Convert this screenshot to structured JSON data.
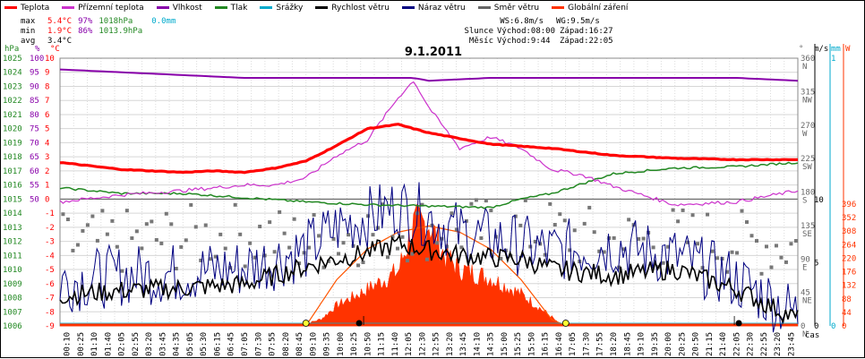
{
  "legend": [
    {
      "label": "Teplota",
      "color": "#ff0000"
    },
    {
      "label": "Přízemní teplota",
      "color": "#cc33cc"
    },
    {
      "label": "Vlhkost",
      "color": "#8800aa"
    },
    {
      "label": "Tlak",
      "color": "#228822"
    },
    {
      "label": "Srážky",
      "color": "#00aacc"
    },
    {
      "label": "Rychlost větru",
      "color": "#000000"
    },
    {
      "label": "Náraz větru",
      "color": "#000080"
    },
    {
      "label": "Směr větru",
      "color": "#666666"
    },
    {
      "label": "Globální záření",
      "color": "#ff3300"
    }
  ],
  "stats": {
    "max_label": "max",
    "min_label": "min",
    "avg_label": "avg",
    "max_temp": "5.4°C",
    "max_hum": "97%",
    "max_press": "1018hPa",
    "max_rain": "0.0mm",
    "min_temp": "1.9°C",
    "min_hum": "86%",
    "min_press": "1013.9hPa",
    "avg_temp": "3.4°C"
  },
  "astro": {
    "ws": "WS:6.8m/s",
    "wg": "WG:9.5m/s",
    "sun_label": "Slunce",
    "sun_rise": "Východ:08:00",
    "sun_set": "Západ:16:27",
    "moon_label": "Měsíc",
    "moon_rise": "Východ:9:44",
    "moon_set": "Západ:22:05"
  },
  "chart_data": {
    "type": "line",
    "title": "9.1.2011",
    "xlabel": "čas",
    "x_ticks": [
      "00:10",
      "00:25",
      "01:10",
      "01:40",
      "02:05",
      "02:55",
      "03:20",
      "03:45",
      "04:35",
      "05:05",
      "05:30",
      "06:15",
      "06:45",
      "07:05",
      "07:30",
      "07:55",
      "08:20",
      "08:45",
      "09:10",
      "09:35",
      "10:00",
      "10:25",
      "10:50",
      "11:15",
      "11:40",
      "12:05",
      "12:30",
      "12:55",
      "13:20",
      "13:45",
      "14:10",
      "14:35",
      "15:00",
      "15:25",
      "15:50",
      "16:15",
      "16:40",
      "17:05",
      "17:30",
      "17:55",
      "18:20",
      "18:45",
      "19:10",
      "19:35",
      "20:00",
      "20:25",
      "20:50",
      "21:15",
      "21:40",
      "22:05",
      "22:30",
      "22:55",
      "23:20",
      "23:45"
    ],
    "axes": {
      "pressure": {
        "label": "hPa",
        "color": "#228822",
        "ticks": [
          "1006",
          "1007",
          "1008",
          "1009",
          "1010",
          "1011",
          "1012",
          "1013",
          "1014",
          "1015",
          "1016",
          "1017",
          "1018",
          "1019",
          "1020",
          "1021",
          "1022",
          "1023",
          "1024",
          "1025"
        ]
      },
      "humidity": {
        "label": "%",
        "color": "#8800aa",
        "ticks": [
          "50",
          "55",
          "60",
          "65",
          "70",
          "75",
          "80",
          "85",
          "90",
          "95",
          "100"
        ]
      },
      "temperature": {
        "label": "°C",
        "color": "#ff0000",
        "ticks": [
          "-9",
          "-8",
          "-7",
          "-6",
          "-5",
          "-4",
          "-3",
          "-2",
          "-1",
          "0",
          "1",
          "2",
          "3",
          "4",
          "5",
          "6",
          "7",
          "8",
          "9",
          "10"
        ]
      },
      "direction": {
        "label": "°",
        "color": "#666666",
        "ticks": [
          "0",
          "45",
          "90",
          "135",
          "180",
          "225",
          "270",
          "315",
          "360"
        ],
        "compass": [
          "N",
          "NE",
          "E",
          "SE",
          "S",
          "SW",
          "W",
          "NW",
          "N"
        ]
      },
      "wind": {
        "label": "m/s",
        "color": "#000000",
        "ticks": [
          "0",
          "5",
          "10"
        ]
      },
      "rain": {
        "label": "mm",
        "color": "#00aacc",
        "ticks": [
          "0",
          "1"
        ]
      },
      "radiation": {
        "label": "W",
        "color": "#ff3300",
        "ticks": [
          "0",
          "44",
          "88",
          "132",
          "176",
          "220",
          "264",
          "308",
          "352",
          "396"
        ]
      }
    },
    "series": [
      {
        "name": "Teplota",
        "unit": "°C",
        "x": [
          0,
          2,
          4,
          5,
          6,
          7,
          8,
          9,
          10,
          11,
          12,
          13,
          14,
          16,
          18,
          20,
          22,
          24
        ],
        "y": [
          2.6,
          2.1,
          1.9,
          2.0,
          1.9,
          2.2,
          2.7,
          3.8,
          5.0,
          5.3,
          4.7,
          4.3,
          3.9,
          3.6,
          3.1,
          2.9,
          2.8,
          2.8
        ]
      },
      {
        "name": "Přízemní teplota",
        "unit": "°C",
        "x": [
          0,
          2,
          4,
          6,
          7,
          8,
          9,
          10,
          11,
          11.5,
          12,
          13,
          14,
          15,
          16,
          17,
          18,
          20,
          22,
          24
        ],
        "y": [
          -0.2,
          0.3,
          0.6,
          1.0,
          1.0,
          1.5,
          3.1,
          4.2,
          7.2,
          8.4,
          6.5,
          3.6,
          4.4,
          3.6,
          2.1,
          1.7,
          0.9,
          -0.4,
          -0.2,
          0.6
        ]
      },
      {
        "name": "Vlhkost",
        "unit": "%",
        "x": [
          0,
          2,
          4,
          6,
          8,
          10,
          11.5,
          12,
          14,
          18,
          22,
          24
        ],
        "y": [
          96,
          95,
          94,
          93,
          93,
          93,
          93,
          92,
          93,
          93,
          93,
          92
        ]
      },
      {
        "name": "Tlak",
        "unit": "hPa",
        "x": [
          0,
          2,
          4,
          6,
          8,
          9,
          10,
          12,
          14,
          15,
          16,
          18,
          20,
          22,
          24
        ],
        "y": [
          1015.8,
          1015.4,
          1015.4,
          1015.1,
          1014.8,
          1014.7,
          1014.6,
          1014.5,
          1014.4,
          1015.0,
          1015.4,
          1016.8,
          1017.2,
          1017.3,
          1017.6
        ]
      },
      {
        "name": "Srážky",
        "unit": "mm",
        "x": [
          0,
          24
        ],
        "y": [
          0.0,
          0.0
        ]
      },
      {
        "name": "Rychlost větru",
        "unit": "m/s",
        "x": [
          0,
          2,
          4,
          6,
          8,
          9,
          10,
          11,
          12,
          13,
          14,
          15,
          16,
          18,
          20,
          22,
          24
        ],
        "y": [
          2.4,
          2.8,
          3.0,
          3.3,
          4.7,
          5.3,
          5.8,
          6.5,
          6.0,
          5.6,
          5.4,
          5.3,
          4.5,
          4.0,
          4.5,
          2.9,
          0.5
        ]
      },
      {
        "name": "Náraz větru",
        "unit": "m/s",
        "x": [
          0,
          2,
          4,
          6,
          8,
          9,
          10,
          11,
          12,
          13,
          14,
          15,
          16,
          18,
          20,
          22,
          24
        ],
        "y": [
          3.5,
          4.0,
          4.2,
          4.6,
          6.0,
          7.8,
          8.6,
          9.5,
          8.6,
          7.4,
          6.9,
          6.4,
          5.9,
          6.4,
          5.5,
          3.6,
          0.9
        ]
      },
      {
        "name": "Směr větru",
        "unit": "°",
        "x": [
          0,
          2,
          4,
          6,
          8,
          10,
          12,
          14,
          16,
          18,
          20,
          22,
          24
        ],
        "y": [
          108,
          112,
          118,
          122,
          112,
          126,
          132,
          128,
          126,
          112,
          118,
          112,
          108
        ]
      },
      {
        "name": "Globální záření",
        "unit": "W",
        "x": [
          7.8,
          8.5,
          9,
          10,
          11,
          11.5,
          12,
          12.5,
          13,
          14,
          15,
          16,
          16.3
        ],
        "y": [
          0,
          22,
          66,
          118,
          177,
          324,
          335,
          228,
          185,
          155,
          103,
          28,
          0
        ]
      },
      {
        "name": "Maximum záření",
        "unit": "W",
        "x": [
          8.0,
          9,
          10,
          11,
          12,
          13,
          14,
          15,
          16,
          16.5
        ],
        "y": [
          0,
          150,
          250,
          305,
          325,
          305,
          250,
          150,
          20,
          0
        ]
      }
    ],
    "markers": [
      {
        "type": "sunrise",
        "x": 8.0
      },
      {
        "type": "sunset",
        "x": 16.45
      },
      {
        "type": "moonrise",
        "x": 9.73
      },
      {
        "type": "moonset",
        "x": 22.08
      }
    ],
    "grid": true
  }
}
